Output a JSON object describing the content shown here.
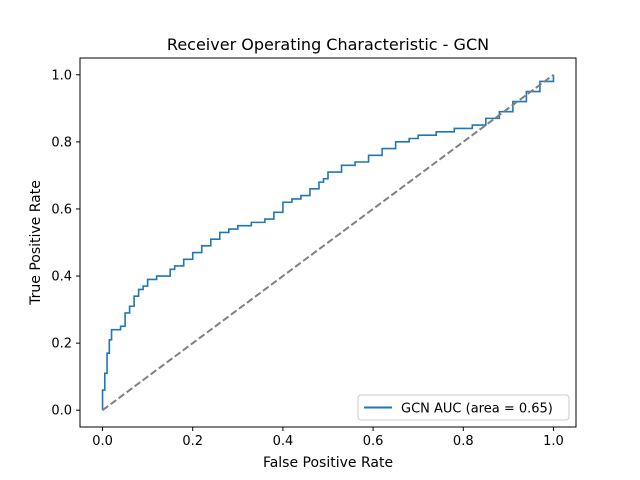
{
  "chart_data": {
    "type": "line",
    "title": "Receiver Operating Characteristic - GCN",
    "xlabel": "False Positive Rate",
    "ylabel": "True Positive Rate",
    "xlim": [
      -0.05,
      1.05
    ],
    "ylim": [
      -0.05,
      1.05
    ],
    "x_ticks": [
      0.0,
      0.2,
      0.4,
      0.6,
      0.8,
      1.0
    ],
    "x_tick_labels": [
      "0.0",
      "0.2",
      "0.4",
      "0.6",
      "0.8",
      "1.0"
    ],
    "y_ticks": [
      0.0,
      0.2,
      0.4,
      0.6,
      0.8,
      1.0
    ],
    "y_tick_labels": [
      "0.0",
      "0.2",
      "0.4",
      "0.6",
      "0.8",
      "1.0"
    ],
    "grid": false,
    "legend_position": "lower right",
    "series": [
      {
        "name": "GCN AUC (area = 0.65)",
        "color": "#1f77b4",
        "style": "step",
        "x": [
          0.0,
          0.0,
          0.005,
          0.005,
          0.01,
          0.01,
          0.015,
          0.015,
          0.02,
          0.02,
          0.04,
          0.04,
          0.05,
          0.05,
          0.06,
          0.06,
          0.07,
          0.07,
          0.08,
          0.08,
          0.09,
          0.09,
          0.1,
          0.1,
          0.12,
          0.12,
          0.15,
          0.15,
          0.16,
          0.16,
          0.18,
          0.18,
          0.2,
          0.2,
          0.22,
          0.22,
          0.24,
          0.24,
          0.26,
          0.26,
          0.28,
          0.28,
          0.3,
          0.3,
          0.33,
          0.33,
          0.36,
          0.36,
          0.38,
          0.38,
          0.4,
          0.4,
          0.42,
          0.42,
          0.44,
          0.44,
          0.46,
          0.46,
          0.48,
          0.48,
          0.49,
          0.49,
          0.5,
          0.5,
          0.53,
          0.53,
          0.56,
          0.56,
          0.59,
          0.59,
          0.62,
          0.62,
          0.65,
          0.65,
          0.68,
          0.68,
          0.7,
          0.7,
          0.74,
          0.74,
          0.78,
          0.78,
          0.82,
          0.82,
          0.85,
          0.85,
          0.88,
          0.88,
          0.91,
          0.91,
          0.94,
          0.94,
          0.97,
          0.97,
          1.0,
          1.0
        ],
        "y": [
          0.0,
          0.06,
          0.06,
          0.11,
          0.11,
          0.17,
          0.17,
          0.21,
          0.21,
          0.24,
          0.24,
          0.25,
          0.25,
          0.29,
          0.29,
          0.31,
          0.31,
          0.34,
          0.34,
          0.36,
          0.36,
          0.37,
          0.37,
          0.39,
          0.39,
          0.4,
          0.4,
          0.42,
          0.42,
          0.43,
          0.43,
          0.45,
          0.45,
          0.47,
          0.47,
          0.49,
          0.49,
          0.51,
          0.51,
          0.53,
          0.53,
          0.54,
          0.54,
          0.55,
          0.55,
          0.56,
          0.56,
          0.57,
          0.57,
          0.59,
          0.59,
          0.62,
          0.62,
          0.63,
          0.63,
          0.64,
          0.64,
          0.66,
          0.66,
          0.68,
          0.68,
          0.69,
          0.69,
          0.71,
          0.71,
          0.73,
          0.73,
          0.74,
          0.74,
          0.76,
          0.76,
          0.78,
          0.78,
          0.8,
          0.8,
          0.81,
          0.81,
          0.82,
          0.82,
          0.83,
          0.83,
          0.84,
          0.84,
          0.85,
          0.85,
          0.87,
          0.87,
          0.89,
          0.89,
          0.92,
          0.92,
          0.95,
          0.95,
          0.98,
          0.98,
          1.0
        ]
      },
      {
        "name": "",
        "color": "#808080",
        "style": "dashed",
        "x": [
          0.0,
          1.0
        ],
        "y": [
          0.0,
          1.0
        ]
      }
    ]
  }
}
